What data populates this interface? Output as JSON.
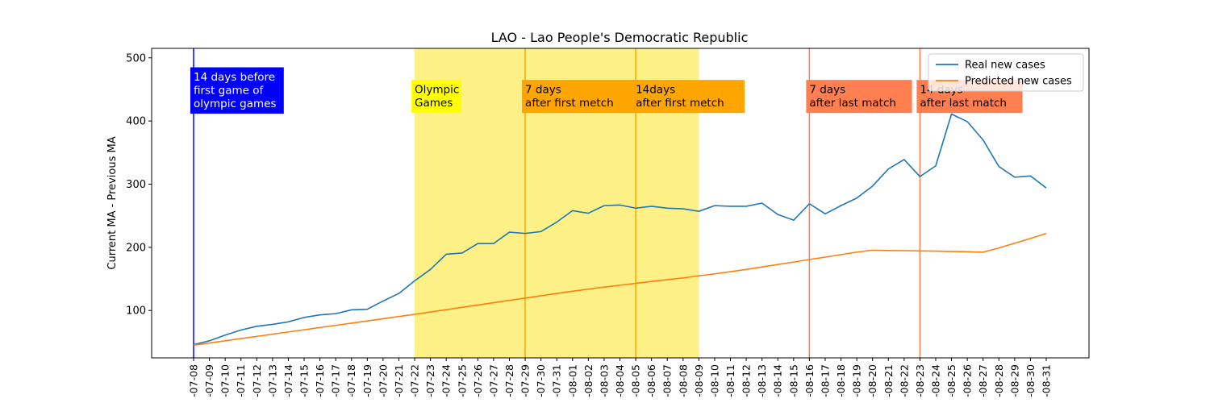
{
  "chart_data": {
    "type": "line",
    "title": "LAO - Lao People's Democratic Republic",
    "xlabel": "",
    "ylabel": "Current MA - Previous MA",
    "ylim": [
      25,
      515
    ],
    "yticks": [
      100,
      200,
      300,
      400,
      500
    ],
    "x": [
      "2021-07-08",
      "2021-07-09",
      "2021-07-10",
      "2021-07-11",
      "2021-07-12",
      "2021-07-13",
      "2021-07-14",
      "2021-07-15",
      "2021-07-16",
      "2021-07-17",
      "2021-07-18",
      "2021-07-19",
      "2021-07-20",
      "2021-07-21",
      "2021-07-22",
      "2021-07-23",
      "2021-07-24",
      "2021-07-25",
      "2021-07-26",
      "2021-07-27",
      "2021-07-28",
      "2021-07-29",
      "2021-07-30",
      "2021-07-31",
      "2021-08-01",
      "2021-08-02",
      "2021-08-03",
      "2021-08-04",
      "2021-08-05",
      "2021-08-06",
      "2021-08-07",
      "2021-08-08",
      "2021-08-09",
      "2021-08-10",
      "2021-08-11",
      "2021-08-12",
      "2021-08-13",
      "2021-08-14",
      "2021-08-15",
      "2021-08-16",
      "2021-08-17",
      "2021-08-18",
      "2021-08-19",
      "2021-08-20",
      "2021-08-21",
      "2021-08-22",
      "2021-08-23",
      "2021-08-24",
      "2021-08-25",
      "2021-08-26",
      "2021-08-27",
      "2021-08-28",
      "2021-08-29",
      "2021-08-30",
      "2021-08-31"
    ],
    "xtick_labels": [
      "-07-08",
      "-07-09",
      "-07-10",
      "-07-11",
      "-07-12",
      "-07-13",
      "-07-14",
      "-07-15",
      "-07-16",
      "-07-17",
      "-07-18",
      "-07-19",
      "-07-20",
      "-07-21",
      "-07-22",
      "-07-23",
      "-07-24",
      "-07-25",
      "-07-26",
      "-07-27",
      "-07-28",
      "-07-29",
      "-07-30",
      "-07-31",
      "-08-01",
      "-08-02",
      "-08-03",
      "-08-04",
      "-08-05",
      "-08-06",
      "-08-07",
      "-08-08",
      "-08-09",
      "-08-10",
      "-08-11",
      "-08-12",
      "-08-13",
      "-08-14",
      "-08-15",
      "-08-16",
      "-08-17",
      "-08-18",
      "-08-19",
      "-08-20",
      "-08-21",
      "-08-22",
      "-08-23",
      "-08-24",
      "-08-25",
      "-08-26",
      "-08-27",
      "-08-28",
      "-08-29",
      "-08-30",
      "-08-31"
    ],
    "series": [
      {
        "name": "Real new cases",
        "color": "#1f77b4",
        "values": [
          46,
          52,
          61,
          69,
          75,
          78,
          82,
          89,
          93,
          95,
          101,
          102,
          115,
          127,
          147,
          165,
          189,
          191,
          206,
          206,
          224,
          222,
          225,
          240,
          258,
          254,
          266,
          267,
          262,
          265,
          262,
          261,
          257,
          266,
          265,
          265,
          270,
          252,
          243,
          269,
          253,
          266,
          278,
          297,
          324,
          339,
          312,
          329,
          411,
          399,
          370,
          328,
          311,
          313,
          294
        ]
      },
      {
        "name": "Predicted new cases",
        "color": "#ff7f0e",
        "values": [
          45,
          48.5,
          52,
          55.5,
          59,
          62.5,
          66,
          69.5,
          73,
          76.5,
          80,
          83.5,
          87,
          90.5,
          94,
          97.7,
          101.3,
          105,
          108.7,
          112.3,
          116,
          119.7,
          123.3,
          127,
          130.5,
          133.8,
          137,
          140,
          143,
          146,
          148.8,
          151.5,
          155,
          158,
          161.5,
          165,
          169,
          172.8,
          176.7,
          180.7,
          184.5,
          188.5,
          192.3,
          195.5,
          195,
          194.7,
          194.3,
          194,
          193.5,
          193,
          192.3,
          199,
          206.5,
          214,
          222
        ]
      }
    ],
    "shaded_region": {
      "from": "2021-07-22",
      "to": "2021-08-09",
      "color": "#fdf086"
    },
    "vertical_lines": [
      {
        "x": "2021-07-08",
        "color": "#0000ff"
      },
      {
        "x": "2021-07-29",
        "color": "#ffa500"
      },
      {
        "x": "2021-08-05",
        "color": "#ffa500"
      },
      {
        "x": "2021-08-16",
        "color": "#ff7f50"
      },
      {
        "x": "2021-08-23",
        "color": "#ff7f50"
      }
    ],
    "annotations": [
      {
        "lines": [
          "14 days before",
          "first game of",
          "olympic games"
        ],
        "x": "2021-07-08",
        "y_top": 485,
        "bg": "#0000ff",
        "fg": "#ffffff"
      },
      {
        "lines": [
          "Olympic",
          "Games"
        ],
        "x": "2021-07-22",
        "y_top": 465,
        "bg": "#ffff00",
        "fg": "#000000"
      },
      {
        "lines": [
          "7 days",
          "after first metch"
        ],
        "x": "2021-07-29",
        "y_top": 465,
        "bg": "#ffa500",
        "fg": "#000000"
      },
      {
        "lines": [
          "14days",
          "after first metch"
        ],
        "x": "2021-08-05",
        "y_top": 465,
        "bg": "#ffa500",
        "fg": "#000000"
      },
      {
        "lines": [
          "7 days",
          "after last match"
        ],
        "x": "2021-08-16",
        "y_top": 465,
        "bg": "#ff7f50",
        "fg": "#000000"
      },
      {
        "lines": [
          "14 days",
          "after last match"
        ],
        "x": "2021-08-23",
        "y_top": 465,
        "bg": "#ff7f50",
        "fg": "#000000"
      }
    ],
    "legend": {
      "placement": "top-right"
    },
    "grid": false
  }
}
